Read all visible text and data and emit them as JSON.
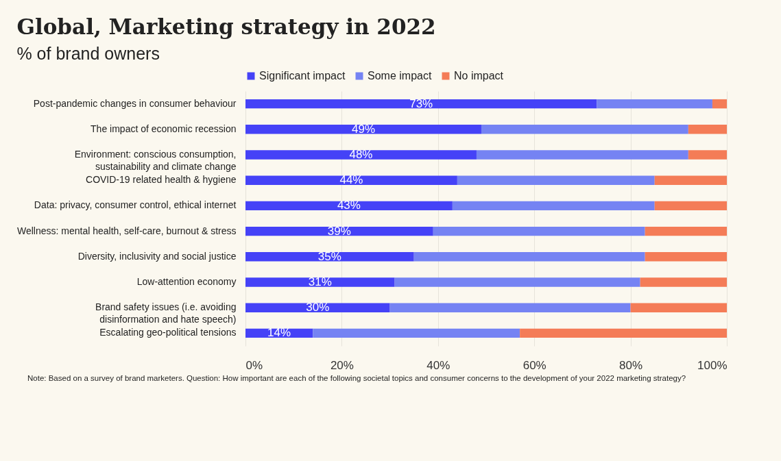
{
  "chart_data": {
    "type": "bar",
    "orientation": "horizontal",
    "stacked": true,
    "title": "Global, Marketing strategy in 2022",
    "subtitle": "% of brand owners",
    "categories": [
      "Post-pandemic changes in consumer behaviour",
      "The impact of economic recession",
      "Environment: conscious consumption,\nsustainability and climate change",
      "COVID-19 related health & hygiene",
      "Data: privacy, consumer control, ethical internet",
      "Wellness: mental health, self-care, burnout & stress",
      "Diversity, inclusivity and social justice",
      "Low-attention economy",
      "Brand safety issues (i.e. avoiding\ndisinformation and hate speech)",
      "Escalating geo-political tensions"
    ],
    "series": [
      {
        "name": "Significant impact",
        "color": "#4542f7",
        "values": [
          73,
          49,
          48,
          44,
          43,
          39,
          35,
          31,
          30,
          14
        ],
        "value_labels": [
          "73%",
          "49%",
          "48%",
          "44%",
          "43%",
          "39%",
          "35%",
          "31%",
          "30%",
          "14%"
        ]
      },
      {
        "name": "Some impact",
        "color": "#7583f3",
        "values": [
          24,
          43,
          44,
          41,
          42,
          44,
          48,
          51,
          50,
          43
        ]
      },
      {
        "name": "No impact",
        "color": "#f47c57",
        "values": [
          3,
          8,
          8,
          15,
          15,
          17,
          17,
          18,
          20,
          43
        ]
      }
    ],
    "xlim": [
      0,
      100
    ],
    "xticks": [
      {
        "value": 0,
        "label": "0%"
      },
      {
        "value": 20,
        "label": "20%"
      },
      {
        "value": 40,
        "label": "40%"
      },
      {
        "value": 60,
        "label": "60%"
      },
      {
        "value": 80,
        "label": "80%"
      },
      {
        "value": 100,
        "label": "100%"
      }
    ],
    "grid": "x",
    "legend": "top",
    "annotations": [
      "Note: Based on a survey of brand marketers. Question: How important are each of the following societal topics and consumer concerns to the development of your 2022 marketing strategy?"
    ]
  }
}
